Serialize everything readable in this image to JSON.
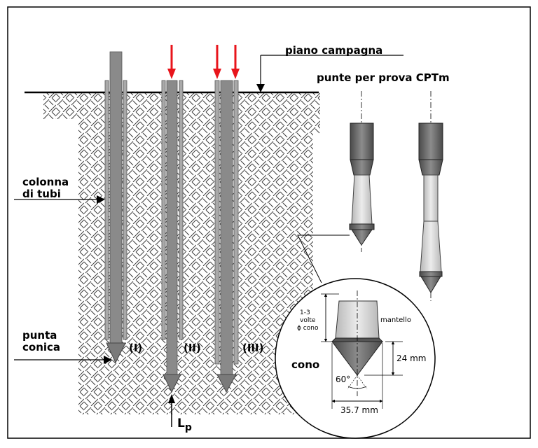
{
  "labels": {
    "ground_level": "piano campagna",
    "cpt_title": "punte per prova CPTm",
    "tube_column_line1": "colonna",
    "tube_column_line2": "di tubi",
    "conical_tip_line1": "punta",
    "conical_tip_line2": "conica",
    "phase_1": "(I)",
    "phase_2": "(II)",
    "phase_3": "(III)",
    "tip_load_main": "L",
    "tip_load_sub": "p",
    "cone": "cono",
    "sleeve": "mantello",
    "sleeve_length_line1": "1-3",
    "sleeve_length_line2": "volte",
    "sleeve_length_line3": "ϕ cono",
    "cone_height": "24 mm",
    "cone_angle": "60°",
    "cone_diameter": "35.7 mm"
  },
  "colors": {
    "rod": "#8a8a8a",
    "rod_dark": "#5f5f5f",
    "tube": "#a9a9a9",
    "force_arrow": "#e8141b",
    "hatch": "#333333",
    "sleeve": "#d6d6d6",
    "cone": "#7a7a7a"
  }
}
